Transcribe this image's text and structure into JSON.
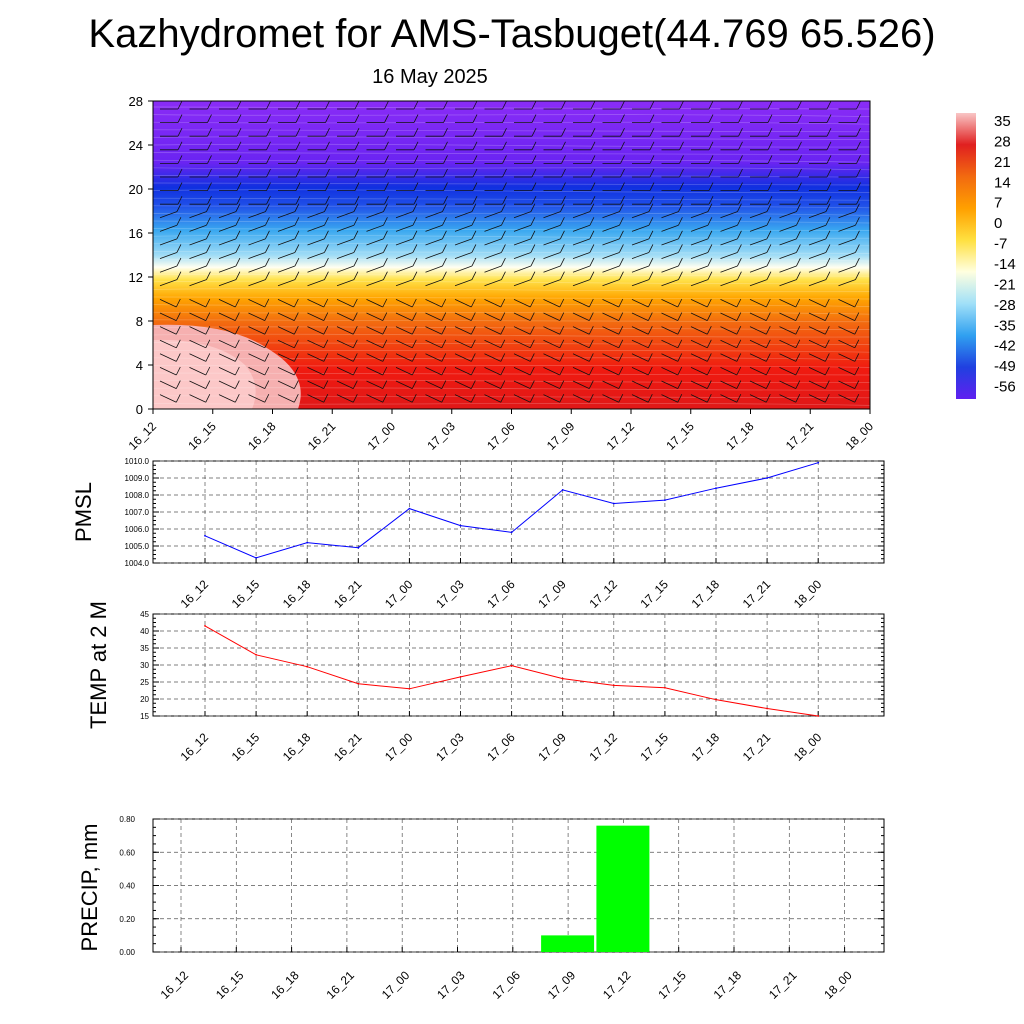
{
  "header": {
    "title": "Kazhydromet for AMS-Tasbuget(44.769 65.526)",
    "subtitle": "16 May 2025"
  },
  "chart_data": [
    {
      "type": "heatmap",
      "title": "",
      "xlabel": "",
      "ylabel": "",
      "x_ticks": [
        "16_12",
        "16_15",
        "16_18",
        "16_21",
        "17_00",
        "17_03",
        "17_06",
        "17_09",
        "17_12",
        "17_15",
        "17_18",
        "17_21",
        "18_00"
      ],
      "y_ticks": [
        0,
        4,
        8,
        12,
        16,
        20,
        24,
        28
      ],
      "ylim": [
        0,
        28
      ],
      "colorbar": {
        "labels": [
          35,
          28,
          21,
          14,
          7,
          0,
          -7,
          -14,
          -21,
          -28,
          -35,
          -42,
          -49,
          -56
        ],
        "colors": [
          "#f9c6c6",
          "#e02020",
          "#f26a10",
          "#ffa000",
          "#ffe040",
          "#ffffe0",
          "#a0e0f8",
          "#30a0f0",
          "#2040e0",
          "#6020f0"
        ]
      },
      "wind_barbs": true
    },
    {
      "type": "line",
      "ylabel": "PMSL",
      "x": [
        "16_12",
        "16_15",
        "16_18",
        "16_21",
        "17_00",
        "17_03",
        "17_06",
        "17_09",
        "17_12",
        "17_15",
        "17_18",
        "17_21",
        "18_00"
      ],
      "series": [
        {
          "values": [
            1005.6,
            1004.3,
            1005.2,
            1004.9,
            1007.2,
            1006.2,
            1005.8,
            1008.3,
            1007.5,
            1007.7,
            1008.4,
            1009.0,
            1009.9
          ],
          "color": "#0000ff"
        }
      ],
      "ylim": [
        1004.0,
        1010.0
      ],
      "y_ticks": [
        "1004.0",
        "1005.0",
        "1006.0",
        "1007.0",
        "1008.0",
        "1009.0",
        "1010.0"
      ],
      "grid": true
    },
    {
      "type": "line",
      "ylabel": "TEMP at 2 M",
      "x": [
        "16_12",
        "16_15",
        "16_18",
        "16_21",
        "17_00",
        "17_03",
        "17_06",
        "17_09",
        "17_12",
        "17_15",
        "17_18",
        "17_21",
        "18_00"
      ],
      "series": [
        {
          "values": [
            41.5,
            33.0,
            29.5,
            24.5,
            23.0,
            26.5,
            29.8,
            26.0,
            24.0,
            23.3,
            19.8,
            17.2,
            15.0
          ],
          "color": "#ff0000"
        }
      ],
      "ylim": [
        15,
        45
      ],
      "y_ticks": [
        "15",
        "20",
        "25",
        "30",
        "35",
        "40",
        "45"
      ],
      "grid": true
    },
    {
      "type": "bar",
      "ylabel": "PRECIP, mm",
      "categories": [
        "16_12",
        "16_15",
        "16_18",
        "16_21",
        "17_00",
        "17_03",
        "17_06",
        "17_09",
        "17_12",
        "17_15",
        "17_18",
        "17_21",
        "18_00"
      ],
      "values": [
        0,
        0,
        0,
        0,
        0,
        0,
        0,
        0.1,
        0.76,
        0,
        0,
        0,
        0
      ],
      "color": "#00ff00",
      "ylim": [
        0,
        0.8
      ],
      "y_ticks": [
        "0.00",
        "0.20",
        "0.40",
        "0.60",
        "0.80"
      ],
      "grid": true
    }
  ]
}
